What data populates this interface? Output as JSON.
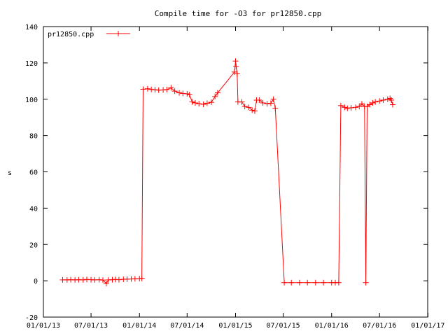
{
  "chart_data": {
    "type": "line",
    "title": "Compile time for -O3 for pr12850.cpp",
    "xlabel": "",
    "ylabel": "s",
    "xlim": [
      "2013-01-01",
      "2016-12-31"
    ],
    "ylim": [
      -20,
      140
    ],
    "yticks": [
      -20,
      0,
      20,
      40,
      60,
      80,
      100,
      120,
      140
    ],
    "xtick_labels": [
      "01/01/13",
      "07/01/13",
      "01/01/14",
      "07/01/14",
      "01/01/15",
      "07/01/15",
      "01/01/16",
      "07/01/16",
      "01/01/17"
    ],
    "xtick_dates": [
      "2013-01-01",
      "2013-07-01",
      "2014-01-01",
      "2014-07-01",
      "2015-01-01",
      "2015-07-01",
      "2016-01-01",
      "2016-07-01",
      "2017-01-01"
    ],
    "grid": false,
    "legend_position": "top-left",
    "series_color": "#ff0000",
    "series": [
      {
        "name": "pr12850.cpp",
        "points": [
          [
            "2013-03-15",
            0.5
          ],
          [
            "2013-04-01",
            0.5
          ],
          [
            "2013-04-15",
            0.6
          ],
          [
            "2013-05-01",
            0.5
          ],
          [
            "2013-05-15",
            0.6
          ],
          [
            "2013-06-01",
            0.5
          ],
          [
            "2013-06-15",
            0.7
          ],
          [
            "2013-07-01",
            0.6
          ],
          [
            "2013-07-15",
            0.5
          ],
          [
            "2013-08-01",
            0.6
          ],
          [
            "2013-08-15",
            0.4
          ],
          [
            "2013-08-28",
            -1.5
          ],
          [
            "2013-09-05",
            0.5
          ],
          [
            "2013-09-20",
            0.6
          ],
          [
            "2013-10-01",
            0.7
          ],
          [
            "2013-10-15",
            0.6
          ],
          [
            "2013-11-01",
            0.8
          ],
          [
            "2013-11-15",
            0.9
          ],
          [
            "2013-12-01",
            1.0
          ],
          [
            "2013-12-15",
            1.1
          ],
          [
            "2014-01-01",
            1.2
          ],
          [
            "2014-01-10",
            1.3
          ],
          [
            "2014-01-15",
            105.5
          ],
          [
            "2014-02-01",
            105.8
          ],
          [
            "2014-02-15",
            105.4
          ],
          [
            "2014-03-01",
            105.2
          ],
          [
            "2014-03-15",
            105.0
          ],
          [
            "2014-04-01",
            105.1
          ],
          [
            "2014-04-15",
            105.3
          ],
          [
            "2014-05-01",
            106.3
          ],
          [
            "2014-05-15",
            104.5
          ],
          [
            "2014-06-01",
            103.5
          ],
          [
            "2014-06-15",
            103.2
          ],
          [
            "2014-07-01",
            103.0
          ],
          [
            "2014-07-10",
            102.5
          ],
          [
            "2014-07-20",
            98.5
          ],
          [
            "2014-08-01",
            98.0
          ],
          [
            "2014-08-15",
            97.5
          ],
          [
            "2014-09-01",
            97.2
          ],
          [
            "2014-09-15",
            97.8
          ],
          [
            "2014-10-01",
            98.3
          ],
          [
            "2014-10-15",
            101.5
          ],
          [
            "2014-10-25",
            103.5
          ],
          [
            "2014-12-28",
            115.0
          ],
          [
            "2015-01-01",
            121.0
          ],
          [
            "2015-01-03",
            118.0
          ],
          [
            "2015-01-07",
            114.0
          ],
          [
            "2015-01-10",
            98.5
          ],
          [
            "2015-01-25",
            98.5
          ],
          [
            "2015-02-05",
            96.0
          ],
          [
            "2015-02-20",
            95.5
          ],
          [
            "2015-03-05",
            94.0
          ],
          [
            "2015-03-15",
            93.5
          ],
          [
            "2015-03-22",
            99.5
          ],
          [
            "2015-04-01",
            99.5
          ],
          [
            "2015-04-15",
            98.0
          ],
          [
            "2015-05-01",
            97.5
          ],
          [
            "2015-05-15",
            97.8
          ],
          [
            "2015-05-25",
            100.0
          ],
          [
            "2015-06-01",
            95.0
          ],
          [
            "2015-07-05",
            -1.0
          ],
          [
            "2015-08-01",
            -1.0
          ],
          [
            "2015-09-01",
            -1.0
          ],
          [
            "2015-10-01",
            -1.0
          ],
          [
            "2015-11-01",
            -1.0
          ],
          [
            "2015-12-01",
            -1.0
          ],
          [
            "2016-01-01",
            -1.0
          ],
          [
            "2016-01-15",
            -1.0
          ],
          [
            "2016-01-28",
            -1.0
          ],
          [
            "2016-02-05",
            96.5
          ],
          [
            "2016-02-20",
            95.5
          ],
          [
            "2016-03-01",
            95.0
          ],
          [
            "2016-03-15",
            95.3
          ],
          [
            "2016-04-01",
            95.5
          ],
          [
            "2016-04-15",
            96.0
          ],
          [
            "2016-04-25",
            97.5
          ],
          [
            "2016-05-05",
            96.0
          ],
          [
            "2016-05-10",
            -1.0
          ],
          [
            "2016-05-15",
            96.0
          ],
          [
            "2016-05-25",
            97.0
          ],
          [
            "2016-06-05",
            98.0
          ],
          [
            "2016-06-15",
            98.5
          ],
          [
            "2016-07-01",
            99.0
          ],
          [
            "2016-07-15",
            99.5
          ],
          [
            "2016-08-01",
            100.0
          ],
          [
            "2016-08-10",
            100.5
          ],
          [
            "2016-08-15",
            99.5
          ],
          [
            "2016-08-20",
            97.0
          ]
        ]
      }
    ]
  }
}
